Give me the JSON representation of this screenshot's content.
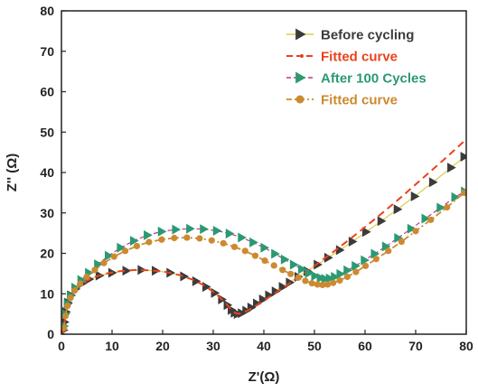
{
  "chart_data": {
    "type": "scatter",
    "title": "",
    "xlabel": "Z'(Ω)",
    "ylabel": "Z'' (Ω)",
    "xlim": [
      0,
      80
    ],
    "ylim": [
      0,
      80
    ],
    "xticks": [
      "0",
      "10",
      "20",
      "30",
      "40",
      "50",
      "60",
      "70",
      "80"
    ],
    "yticks": [
      "0",
      "10",
      "20",
      "30",
      "40",
      "50",
      "60",
      "70",
      "80"
    ],
    "grid": false,
    "legend_position": "top-right",
    "series": [
      {
        "name": "Before cycling",
        "kind": "markers",
        "marker": "triangle-right",
        "color": "#3b3b3b",
        "x": [
          0.4,
          0.6,
          0.9,
          1.3,
          1.9,
          2.8,
          4.0,
          5.5,
          7.5,
          10.0,
          12.8,
          15.8,
          18.6,
          21.5,
          24.2,
          26.6,
          28.6,
          30.3,
          31.7,
          32.8,
          33.6,
          34.2,
          34.8,
          35.6,
          36.5,
          37.5,
          38.6,
          39.8,
          41.0,
          42.3,
          43.7,
          45.1,
          46.8,
          48.6,
          50.6,
          52.7,
          55.0,
          57.5,
          60.2,
          63.2,
          66.4,
          69.8,
          73.4,
          77.0,
          79.6
        ],
        "y": [
          1.0,
          3.0,
          5.5,
          7.8,
          9.6,
          11.2,
          12.5,
          13.6,
          14.5,
          15.2,
          15.7,
          15.9,
          15.7,
          15.2,
          14.3,
          13.1,
          11.7,
          10.2,
          8.6,
          7.2,
          6.0,
          5.3,
          5.0,
          5.2,
          5.8,
          6.6,
          7.6,
          8.6,
          9.6,
          10.6,
          11.7,
          12.8,
          14.2,
          15.6,
          17.2,
          18.9,
          20.8,
          22.9,
          25.3,
          28.0,
          30.9,
          34.1,
          37.6,
          41.2,
          43.9
        ]
      },
      {
        "name": "Fitted curve",
        "kind": "dash-line",
        "color": "#e8431c",
        "x": [
          0.3,
          0.6,
          1.0,
          1.5,
          2.2,
          3.2,
          4.6,
          6.4,
          8.8,
          11.6,
          14.6,
          17.6,
          20.6,
          23.4,
          25.9,
          28.0,
          29.8,
          31.3,
          32.5,
          33.4,
          34.0,
          34.6,
          35.4,
          36.4,
          37.6,
          39.0,
          40.6,
          42.4,
          44.4,
          46.6,
          49.0,
          51.6,
          54.4,
          57.4,
          60.6,
          64.0,
          67.6,
          71.4,
          75.4,
          80.0
        ],
        "y": [
          0.0,
          3.0,
          6.0,
          8.3,
          10.1,
          11.7,
          13.0,
          14.1,
          15.0,
          15.6,
          15.9,
          15.8,
          15.4,
          14.6,
          13.5,
          12.2,
          10.7,
          9.1,
          7.6,
          6.3,
          5.5,
          5.1,
          5.1,
          5.6,
          6.4,
          7.5,
          8.8,
          10.3,
          12.0,
          13.9,
          16.0,
          18.4,
          21.0,
          23.9,
          27.1,
          30.6,
          34.4,
          38.6,
          43.0,
          48.2
        ]
      },
      {
        "name": "After 100 Cycles",
        "kind": "markers",
        "marker": "triangle-right",
        "color": "#2a9a73",
        "x": [
          0.5,
          0.8,
          1.2,
          1.8,
          2.7,
          3.9,
          5.4,
          7.2,
          9.3,
          11.7,
          14.3,
          17.0,
          19.8,
          22.6,
          25.4,
          28.1,
          30.7,
          33.2,
          35.6,
          37.9,
          40.1,
          42.2,
          44.1,
          45.9,
          47.5,
          48.9,
          50.1,
          51.2,
          52.1,
          53.0,
          54.0,
          55.1,
          56.5,
          58.1,
          59.9,
          61.9,
          64.1,
          66.5,
          69.1,
          71.9,
          74.9,
          77.8,
          79.7
        ],
        "y": [
          2.0,
          5.0,
          7.5,
          9.5,
          11.5,
          13.4,
          15.2,
          17.3,
          19.4,
          21.4,
          23.1,
          24.5,
          25.4,
          25.9,
          26.1,
          26.0,
          25.6,
          24.9,
          23.9,
          22.7,
          21.4,
          19.9,
          18.5,
          17.2,
          16.1,
          15.1,
          14.4,
          13.9,
          13.7,
          13.8,
          14.2,
          14.9,
          15.8,
          16.9,
          18.3,
          19.9,
          21.7,
          23.8,
          26.1,
          28.6,
          31.3,
          33.9,
          35.3
        ]
      },
      {
        "name": "Fitted curve",
        "kind": "dash-dot-circles",
        "color": "#cc8a30",
        "x": [
          0.5,
          0.8,
          1.2,
          1.8,
          2.6,
          3.7,
          5.0,
          6.6,
          8.4,
          10.4,
          12.6,
          14.9,
          17.3,
          19.8,
          22.3,
          24.8,
          27.3,
          29.7,
          32.0,
          34.2,
          36.3,
          38.3,
          40.2,
          42.0,
          43.7,
          45.3,
          46.8,
          48.2,
          49.5,
          50.6,
          51.6,
          52.6,
          53.7,
          55.0,
          56.5,
          58.2,
          60.1,
          62.2,
          64.6,
          67.2,
          70.0,
          73.0,
          76.2,
          79.6
        ],
        "y": [
          1.5,
          4.5,
          7.0,
          9.0,
          10.8,
          12.5,
          14.2,
          15.9,
          17.6,
          19.2,
          20.6,
          21.8,
          22.8,
          23.4,
          23.8,
          23.9,
          23.7,
          23.2,
          22.5,
          21.6,
          20.6,
          19.4,
          18.2,
          17.0,
          15.9,
          14.9,
          14.0,
          13.2,
          12.6,
          12.3,
          12.2,
          12.3,
          12.7,
          13.3,
          14.2,
          15.4,
          16.9,
          18.6,
          20.6,
          22.9,
          25.5,
          28.3,
          31.4,
          35.0
        ]
      }
    ]
  }
}
